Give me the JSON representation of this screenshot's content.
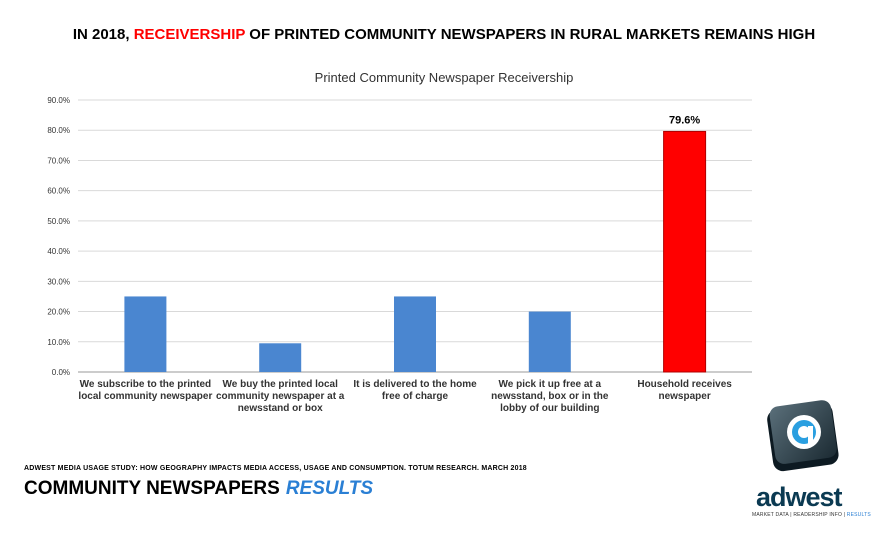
{
  "headline": {
    "prefix": "IN 2018, ",
    "accent": "RECEIVERSHIP",
    "suffix": " OF PRINTED COMMUNITY NEWSPAPERS IN RURAL MARKETS REMAINS HIGH"
  },
  "chart_data": {
    "type": "bar",
    "title": "Printed Community Newspaper Receivership",
    "categories": [
      [
        "We subscribe to the printed",
        "local community newspaper"
      ],
      [
        "We buy the printed local",
        "community newspaper at a",
        "newsstand or box"
      ],
      [
        "It is delivered to the home",
        "free of charge"
      ],
      [
        "We pick it up free at a",
        "newsstand, box or in the",
        "lobby of our building"
      ],
      [
        "Household receives",
        "newspaper"
      ]
    ],
    "values": [
      25.0,
      9.5,
      25.0,
      20.0,
      79.6
    ],
    "data_labels": [
      "",
      "",
      "",
      "",
      "79.6%"
    ],
    "ylim": [
      0,
      90
    ],
    "yticks": [
      "0.0%",
      "10.0%",
      "20.0%",
      "30.0%",
      "40.0%",
      "50.0%",
      "60.0%",
      "70.0%",
      "80.0%",
      "90.0%"
    ],
    "grid": true,
    "colors": {
      "default_bar": "#4a86d0",
      "highlight_bar": "#ff0000",
      "highlight_border": "#b00000",
      "grid": "#d9d9d9"
    }
  },
  "footer": {
    "study_note": "ADWEST MEDIA USAGE STUDY: HOW GEOGRAPHY IMPACTS MEDIA ACCESS, USAGE AND CONSUMPTION. TOTUM RESEARCH. MARCH 2018",
    "title": "COMMUNITY NEWSPAPERS",
    "results": "RESULTS"
  },
  "logo": {
    "brand": "adwest",
    "tag_a": "MARKET DATA | READERSHIP INFO | ",
    "tag_b": "RESULTS",
    "icon": "adwest-at-logo-icon"
  }
}
